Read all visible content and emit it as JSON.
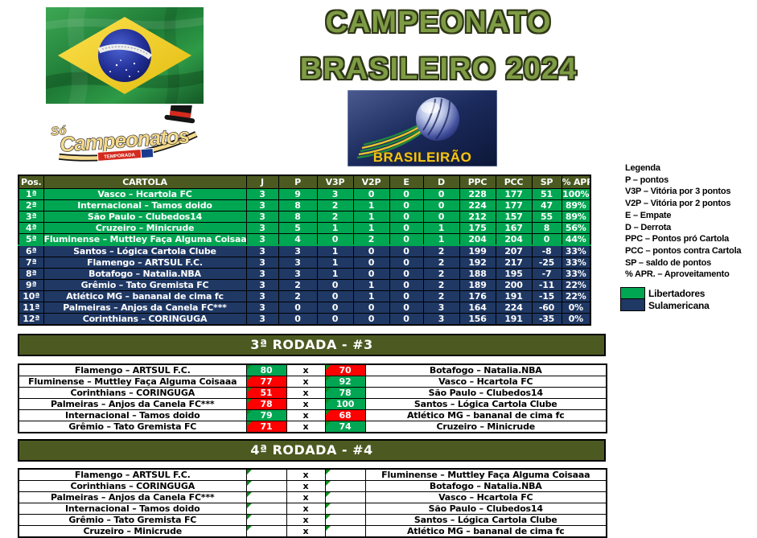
{
  "page": {
    "title_line1": "CAMPEONATO",
    "title_line2": "BRASILEIRO 2024"
  },
  "logos": {
    "flag": "brazil-flag",
    "so_campeonatos": {
      "prefix": "Só",
      "name": "Campeonatos",
      "badge": "TEMPORADA"
    },
    "brasileirao": {
      "text": "BRASILEIRÃO"
    }
  },
  "legend": {
    "title": "Legenda",
    "items": [
      "P – pontos",
      "V3P – Vitória por 3 pontos",
      "V2P – Vitória por 2 pontos",
      "E – Empate",
      "D – Derrota",
      "PPC – Pontos pró Cartola",
      "PCC – pontos contra Cartola",
      "SP – saldo de pontos",
      "% APR. – Aproveitamento"
    ],
    "zones": [
      {
        "label": "Libertadores",
        "color": "#00A651"
      },
      {
        "label": "Sulamericana",
        "color": "#1F3864"
      }
    ]
  },
  "standings": {
    "headers": [
      "Pos.",
      "CARTOLA",
      "J",
      "P",
      "V3P",
      "V2P",
      "E",
      "D",
      "PPC",
      "PCC",
      "SP",
      "% APR."
    ],
    "rows": [
      {
        "pos": "1ª",
        "team": "Vasco – Hcartola FC",
        "j": "3",
        "p": "9",
        "v3p": "3",
        "v2p": "0",
        "e": "0",
        "d": "0",
        "ppc": "228",
        "pcc": "177",
        "sp": "51",
        "apr": "100%",
        "zone": "libertadores"
      },
      {
        "pos": "2ª",
        "team": "Internacional – Tamos doido",
        "j": "3",
        "p": "8",
        "v3p": "2",
        "v2p": "1",
        "e": "0",
        "d": "0",
        "ppc": "224",
        "pcc": "177",
        "sp": "47",
        "apr": "89%",
        "zone": "libertadores"
      },
      {
        "pos": "3ª",
        "team": "São Paulo – Clubedos14",
        "j": "3",
        "p": "8",
        "v3p": "2",
        "v2p": "1",
        "e": "0",
        "d": "0",
        "ppc": "212",
        "pcc": "157",
        "sp": "55",
        "apr": "89%",
        "zone": "libertadores"
      },
      {
        "pos": "4ª",
        "team": "Cruzeiro – Minicrude",
        "j": "3",
        "p": "5",
        "v3p": "1",
        "v2p": "1",
        "e": "0",
        "d": "1",
        "ppc": "175",
        "pcc": "167",
        "sp": "8",
        "apr": "56%",
        "zone": "libertadores"
      },
      {
        "pos": "5ª",
        "team": "Fluminense – Muttley Faça Alguma Coisaaa",
        "j": "3",
        "p": "4",
        "v3p": "0",
        "v2p": "2",
        "e": "0",
        "d": "1",
        "ppc": "204",
        "pcc": "204",
        "sp": "0",
        "apr": "44%",
        "zone": "libertadores"
      },
      {
        "pos": "6ª",
        "team": "Santos – Lógica Cartola Clube",
        "j": "3",
        "p": "3",
        "v3p": "1",
        "v2p": "0",
        "e": "0",
        "d": "2",
        "ppc": "199",
        "pcc": "207",
        "sp": "-8",
        "apr": "33%",
        "zone": "sulamericana"
      },
      {
        "pos": "7ª",
        "team": "Flamengo – ARTSUL F.C.",
        "j": "3",
        "p": "3",
        "v3p": "1",
        "v2p": "0",
        "e": "0",
        "d": "2",
        "ppc": "192",
        "pcc": "217",
        "sp": "-25",
        "apr": "33%",
        "zone": "sulamericana"
      },
      {
        "pos": "8ª",
        "team": "Botafogo – Natalia.NBA",
        "j": "3",
        "p": "3",
        "v3p": "1",
        "v2p": "0",
        "e": "0",
        "d": "2",
        "ppc": "188",
        "pcc": "195",
        "sp": "-7",
        "apr": "33%",
        "zone": "sulamericana"
      },
      {
        "pos": "9ª",
        "team": "Grêmio – Tato Gremista FC",
        "j": "3",
        "p": "2",
        "v3p": "0",
        "v2p": "1",
        "e": "0",
        "d": "2",
        "ppc": "189",
        "pcc": "200",
        "sp": "-11",
        "apr": "22%",
        "zone": "sulamericana"
      },
      {
        "pos": "10ª",
        "team": "Atlético MG – bananal de cima fc",
        "j": "3",
        "p": "2",
        "v3p": "0",
        "v2p": "1",
        "e": "0",
        "d": "2",
        "ppc": "176",
        "pcc": "191",
        "sp": "-15",
        "apr": "22%",
        "zone": "sulamericana"
      },
      {
        "pos": "11ª",
        "team": "Palmeiras – Anjos da Canela FC***",
        "j": "3",
        "p": "0",
        "v3p": "0",
        "v2p": "0",
        "e": "0",
        "d": "3",
        "ppc": "164",
        "pcc": "224",
        "sp": "-60",
        "apr": "0%",
        "zone": "sulamericana"
      },
      {
        "pos": "12ª",
        "team": "Corinthians – CORINGUGA",
        "j": "3",
        "p": "0",
        "v3p": "0",
        "v2p": "0",
        "e": "0",
        "d": "3",
        "ppc": "156",
        "pcc": "191",
        "sp": "-35",
        "apr": "0%",
        "zone": "sulamericana"
      }
    ]
  },
  "rounds": [
    {
      "title": "3ª RODADA - #3",
      "separator": "x",
      "matches": [
        {
          "home": "Flamengo – ARTSUL F.C.",
          "home_score": "80",
          "home_result": "win",
          "away_score": "70",
          "away_result": "loss",
          "away": "Botafogo – Natalia.NBA"
        },
        {
          "home": "Fluminense – Muttley Faça Alguma Coisaaa",
          "home_score": "77",
          "home_result": "loss",
          "away_score": "92",
          "away_result": "win",
          "away": "Vasco – Hcartola FC"
        },
        {
          "home": "Corinthians – CORINGUGA",
          "home_score": "51",
          "home_result": "loss",
          "away_score": "78",
          "away_result": "win",
          "away": "São Paulo – Clubedos14"
        },
        {
          "home": "Palmeiras – Anjos da Canela FC***",
          "home_score": "78",
          "home_result": "loss",
          "away_score": "100",
          "away_result": "win",
          "away": "Santos – Lógica Cartola Clube"
        },
        {
          "home": "Internacional – Tamos doido",
          "home_score": "79",
          "home_result": "win",
          "away_score": "68",
          "away_result": "loss",
          "away": "Atlético MG – bananal de cima fc"
        },
        {
          "home": "Grêmio – Tato Gremista FC",
          "home_score": "71",
          "home_result": "loss",
          "away_score": "74",
          "away_result": "win",
          "away": "Cruzeiro – Minicrude"
        }
      ]
    },
    {
      "title": "4ª RODADA - #4",
      "separator": "x",
      "matches": [
        {
          "home": "Flamengo – ARTSUL F.C.",
          "home_score": "",
          "home_result": "pending",
          "away_score": "",
          "away_result": "pending",
          "away": "Fluminense – Muttley Faça Alguma Coisaaa"
        },
        {
          "home": "Corinthians – CORINGUGA",
          "home_score": "",
          "home_result": "pending",
          "away_score": "",
          "away_result": "pending",
          "away": "Botafogo – Natalia.NBA"
        },
        {
          "home": "Palmeiras – Anjos da Canela FC***",
          "home_score": "",
          "home_result": "pending",
          "away_score": "",
          "away_result": "pending",
          "away": "Vasco – Hcartola FC"
        },
        {
          "home": "Internacional – Tamos doido",
          "home_score": "",
          "home_result": "pending",
          "away_score": "",
          "away_result": "pending",
          "away": "São Paulo – Clubedos14"
        },
        {
          "home": "Grêmio – Tato Gremista FC",
          "home_score": "",
          "home_result": "pending",
          "away_score": "",
          "away_result": "pending",
          "away": "Santos – Lógica Cartola Clube"
        },
        {
          "home": "Cruzeiro – Minicrude",
          "home_score": "",
          "home_result": "pending",
          "away_score": "",
          "away_result": "pending",
          "away": "Atlético MG – bananal de cima fc"
        }
      ]
    }
  ],
  "colors": {
    "libertadores": "#00A651",
    "sulamericana": "#1F3864",
    "win": "#00A651",
    "loss": "#FF0000",
    "bar_olive": "#4C5A21"
  }
}
